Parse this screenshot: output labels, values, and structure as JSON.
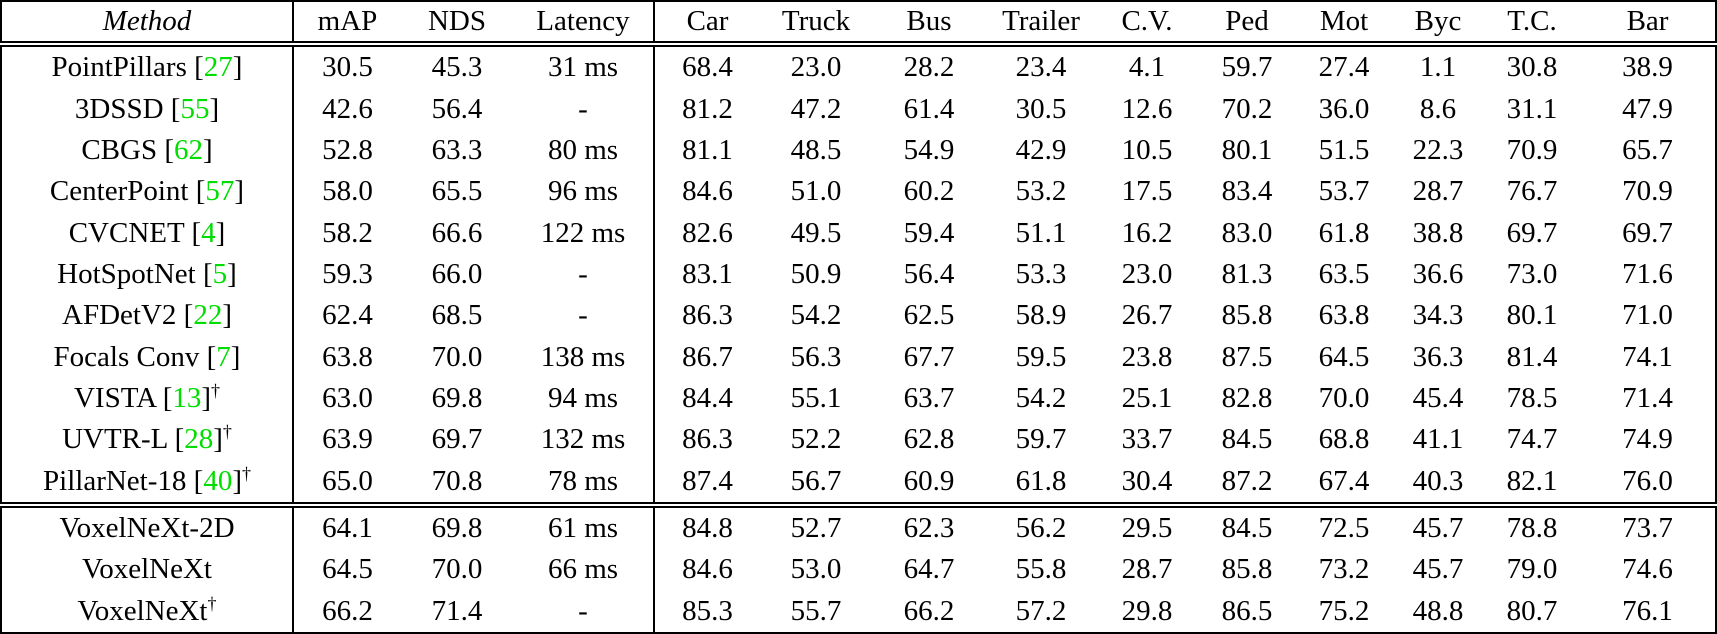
{
  "table": {
    "dagger_symbol": "†",
    "citation_color": "#00dd00",
    "columns": [
      "Method",
      "mAP",
      "NDS",
      "Latency",
      "Car",
      "Truck",
      "Bus",
      "Trailer",
      "C.V.",
      "Ped",
      "Mot",
      "Byc",
      "T.C.",
      "Bar"
    ],
    "sections": [
      {
        "rows": [
          {
            "method": "PointPillars",
            "cite": "27",
            "dagger": false,
            "values": [
              "30.5",
              "45.3",
              "31 ms",
              "68.4",
              "23.0",
              "28.2",
              "23.4",
              "4.1",
              "59.7",
              "27.4",
              "1.1",
              "30.8",
              "38.9"
            ]
          },
          {
            "method": "3DSSD",
            "cite": "55",
            "dagger": false,
            "values": [
              "42.6",
              "56.4",
              "-",
              "81.2",
              "47.2",
              "61.4",
              "30.5",
              "12.6",
              "70.2",
              "36.0",
              "8.6",
              "31.1",
              "47.9"
            ]
          },
          {
            "method": "CBGS",
            "cite": "62",
            "dagger": false,
            "values": [
              "52.8",
              "63.3",
              "80 ms",
              "81.1",
              "48.5",
              "54.9",
              "42.9",
              "10.5",
              "80.1",
              "51.5",
              "22.3",
              "70.9",
              "65.7"
            ]
          },
          {
            "method": "CenterPoint",
            "cite": "57",
            "dagger": false,
            "values": [
              "58.0",
              "65.5",
              "96 ms",
              "84.6",
              "51.0",
              "60.2",
              "53.2",
              "17.5",
              "83.4",
              "53.7",
              "28.7",
              "76.7",
              "70.9"
            ]
          },
          {
            "method": "CVCNET",
            "cite": "4",
            "dagger": false,
            "values": [
              "58.2",
              "66.6",
              "122 ms",
              "82.6",
              "49.5",
              "59.4",
              "51.1",
              "16.2",
              "83.0",
              "61.8",
              "38.8",
              "69.7",
              "69.7"
            ]
          },
          {
            "method": "HotSpotNet",
            "cite": "5",
            "dagger": false,
            "values": [
              "59.3",
              "66.0",
              "-",
              "83.1",
              "50.9",
              "56.4",
              "53.3",
              "23.0",
              "81.3",
              "63.5",
              "36.6",
              "73.0",
              "71.6"
            ]
          },
          {
            "method": "AFDetV2",
            "cite": "22",
            "dagger": false,
            "values": [
              "62.4",
              "68.5",
              "-",
              "86.3",
              "54.2",
              "62.5",
              "58.9",
              "26.7",
              "85.8",
              "63.8",
              "34.3",
              "80.1",
              "71.0"
            ]
          },
          {
            "method": "Focals Conv",
            "cite": "7",
            "dagger": false,
            "values": [
              "63.8",
              "70.0",
              "138 ms",
              "86.7",
              "56.3",
              "67.7",
              "59.5",
              "23.8",
              "87.5",
              "64.5",
              "36.3",
              "81.4",
              "74.1"
            ]
          },
          {
            "method": "VISTA",
            "cite": "13",
            "dagger": true,
            "values": [
              "63.0",
              "69.8",
              "94 ms",
              "84.4",
              "55.1",
              "63.7",
              "54.2",
              "25.1",
              "82.8",
              "70.0",
              "45.4",
              "78.5",
              "71.4"
            ]
          },
          {
            "method": "UVTR-L",
            "cite": "28",
            "dagger": true,
            "values": [
              "63.9",
              "69.7",
              "132 ms",
              "86.3",
              "52.2",
              "62.8",
              "59.7",
              "33.7",
              "84.5",
              "68.8",
              "41.1",
              "74.7",
              "74.9"
            ]
          },
          {
            "method": "PillarNet-18",
            "cite": "40",
            "dagger": true,
            "values": [
              "65.0",
              "70.8",
              "78 ms",
              "87.4",
              "56.7",
              "60.9",
              "61.8",
              "30.4",
              "87.2",
              "67.4",
              "40.3",
              "82.1",
              "76.0"
            ]
          }
        ]
      },
      {
        "rows": [
          {
            "method": "VoxelNeXt-2D",
            "cite": "",
            "dagger": false,
            "values": [
              "64.1",
              "69.8",
              "61 ms",
              "84.8",
              "52.7",
              "62.3",
              "56.2",
              "29.5",
              "84.5",
              "72.5",
              "45.7",
              "78.8",
              "73.7"
            ]
          },
          {
            "method": "VoxelNeXt",
            "cite": "",
            "dagger": false,
            "values": [
              "64.5",
              "70.0",
              "66 ms",
              "84.6",
              "53.0",
              "64.7",
              "55.8",
              "28.7",
              "85.8",
              "73.2",
              "45.7",
              "79.0",
              "74.6"
            ]
          },
          {
            "method": "VoxelNeXt",
            "cite": "",
            "dagger": true,
            "bold": [
              0,
              1
            ],
            "values": [
              "66.2",
              "71.4",
              "-",
              "85.3",
              "55.7",
              "66.2",
              "57.2",
              "29.8",
              "86.5",
              "75.2",
              "48.8",
              "80.7",
              "76.1"
            ]
          }
        ]
      }
    ]
  }
}
